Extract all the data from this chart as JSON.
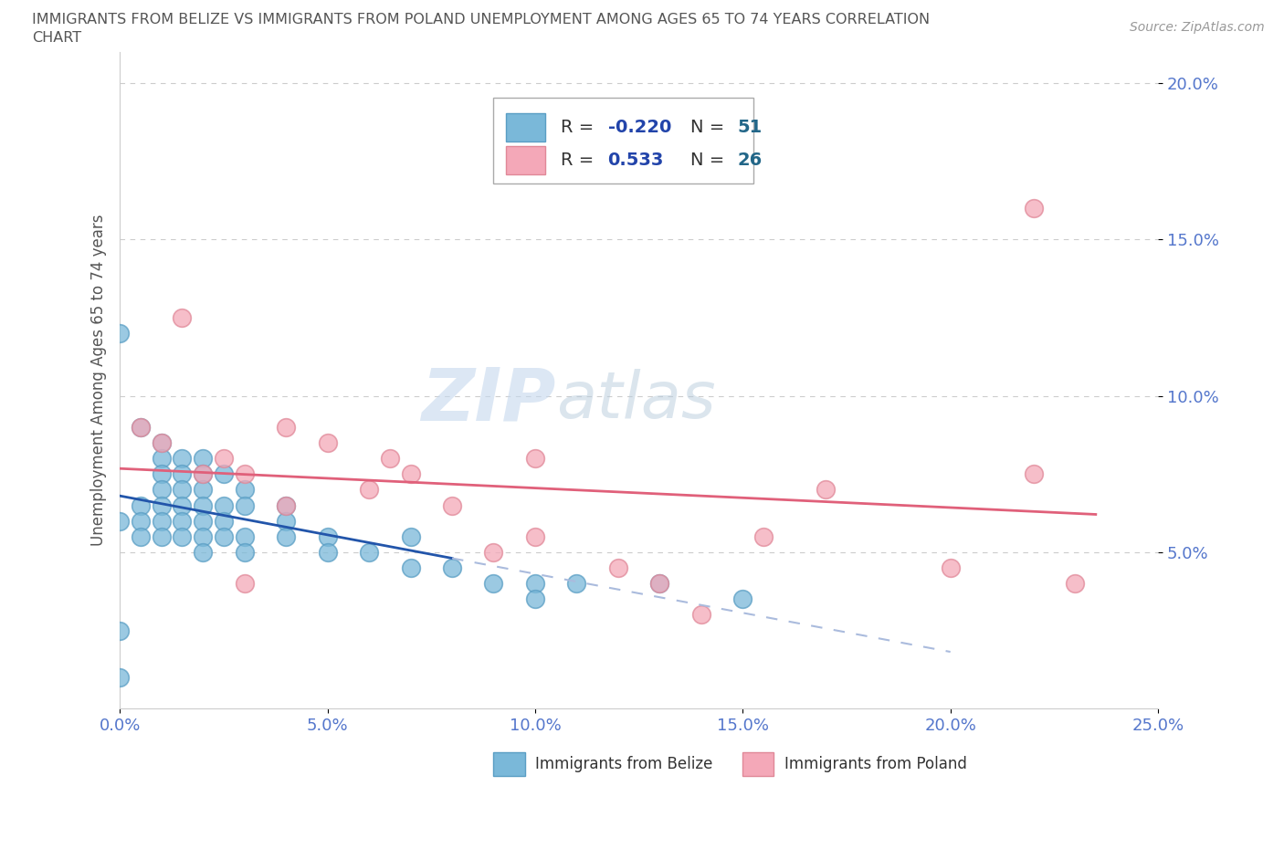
{
  "title_line1": "IMMIGRANTS FROM BELIZE VS IMMIGRANTS FROM POLAND UNEMPLOYMENT AMONG AGES 65 TO 74 YEARS CORRELATION",
  "title_line2": "CHART",
  "source": "Source: ZipAtlas.com",
  "ylabel": "Unemployment Among Ages 65 to 74 years",
  "xlim": [
    0.0,
    0.25
  ],
  "ylim": [
    0.0,
    0.21
  ],
  "xticks": [
    0.0,
    0.05,
    0.1,
    0.15,
    0.2,
    0.25
  ],
  "yticks": [
    0.05,
    0.1,
    0.15,
    0.2
  ],
  "xtick_labels": [
    "0.0%",
    "5.0%",
    "10.0%",
    "15.0%",
    "20.0%",
    "25.0%"
  ],
  "ytick_labels": [
    "5.0%",
    "10.0%",
    "15.0%",
    "20.0%"
  ],
  "belize_color": "#7ab8d9",
  "belize_edge": "#5a9ec4",
  "poland_color": "#f4a8b8",
  "poland_edge": "#e08898",
  "belize_line_color": "#2255aa",
  "belize_line_dash_color": "#aabbdd",
  "poland_line_color": "#e0607a",
  "belize_R": -0.22,
  "belize_N": 51,
  "poland_R": 0.533,
  "poland_N": 26,
  "belize_x": [
    0.0,
    0.0,
    0.0,
    0.005,
    0.005,
    0.005,
    0.005,
    0.01,
    0.01,
    0.01,
    0.01,
    0.01,
    0.01,
    0.01,
    0.015,
    0.015,
    0.015,
    0.015,
    0.015,
    0.015,
    0.02,
    0.02,
    0.02,
    0.02,
    0.02,
    0.02,
    0.02,
    0.025,
    0.025,
    0.025,
    0.025,
    0.03,
    0.03,
    0.03,
    0.03,
    0.04,
    0.04,
    0.04,
    0.05,
    0.05,
    0.06,
    0.07,
    0.07,
    0.08,
    0.09,
    0.1,
    0.1,
    0.11,
    0.13,
    0.15,
    0.0
  ],
  "belize_y": [
    0.12,
    0.06,
    0.01,
    0.09,
    0.065,
    0.06,
    0.055,
    0.085,
    0.08,
    0.075,
    0.07,
    0.065,
    0.06,
    0.055,
    0.08,
    0.075,
    0.07,
    0.065,
    0.06,
    0.055,
    0.08,
    0.075,
    0.07,
    0.065,
    0.06,
    0.055,
    0.05,
    0.075,
    0.065,
    0.06,
    0.055,
    0.07,
    0.065,
    0.055,
    0.05,
    0.065,
    0.06,
    0.055,
    0.055,
    0.05,
    0.05,
    0.055,
    0.045,
    0.045,
    0.04,
    0.04,
    0.035,
    0.04,
    0.04,
    0.035,
    0.025
  ],
  "poland_x": [
    0.005,
    0.01,
    0.015,
    0.02,
    0.025,
    0.03,
    0.03,
    0.04,
    0.04,
    0.05,
    0.06,
    0.065,
    0.07,
    0.08,
    0.09,
    0.1,
    0.1,
    0.12,
    0.13,
    0.14,
    0.155,
    0.17,
    0.2,
    0.22,
    0.22,
    0.23
  ],
  "poland_y": [
    0.09,
    0.085,
    0.125,
    0.075,
    0.08,
    0.075,
    0.04,
    0.09,
    0.065,
    0.085,
    0.07,
    0.08,
    0.075,
    0.065,
    0.05,
    0.08,
    0.055,
    0.045,
    0.04,
    0.03,
    0.055,
    0.07,
    0.045,
    0.16,
    0.075,
    0.04
  ],
  "watermark_zip": "ZIP",
  "watermark_atlas": "atlas",
  "background_color": "#ffffff",
  "grid_color": "#cccccc",
  "title_color": "#555555",
  "tick_color": "#5577cc",
  "R_color": "#2244aa",
  "N_color": "#226688"
}
